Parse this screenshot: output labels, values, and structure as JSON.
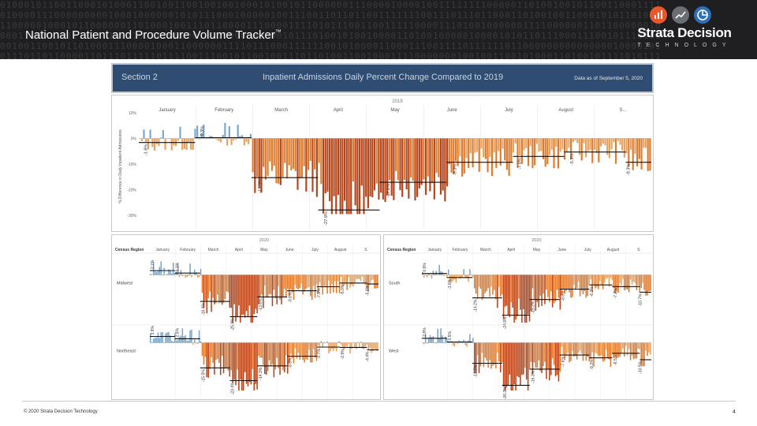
{
  "header": {
    "title": "National Patient and Procedure Volume Tracker",
    "title_mark": "™",
    "logo_name": "Strata Decision",
    "logo_sub": "TECHNOLOGY",
    "logo_badges": [
      {
        "icon": "bar-chart-icon",
        "color": "#e8582c"
      },
      {
        "icon": "line-chart-icon",
        "color": "#6b6f74"
      },
      {
        "icon": "pie-chart-icon",
        "color": "#2f6fb5"
      }
    ]
  },
  "section": {
    "label": "Section 2",
    "title": "Inpatient Admissions Daily Percent Change Compared to 2019",
    "date": "Data as of September 5, 2020"
  },
  "footer": {
    "copyright": "© 2020 Strata Decision Technology",
    "page": "4"
  },
  "colors": {
    "positive": "#7aa6c9",
    "negative_light": "#e8a25f",
    "negative_mid": "#e07b2e",
    "negative_dark": "#b5441a"
  },
  "chart_data": [
    {
      "type": "bar",
      "name": "national",
      "year_label": "2019",
      "ylabel": "% Difference in Daily Inpatient Admissions",
      "ylim": [
        -30,
        10
      ],
      "yticks": [
        "10%",
        "0%",
        "-10%",
        "-20%",
        "-30%"
      ],
      "months": [
        "January",
        "February",
        "March",
        "April",
        "May",
        "June",
        "July",
        "August",
        "S..."
      ],
      "period_avgs": [
        {
          "label": "-1.6%",
          "value": -1.6,
          "from": 0.0,
          "to": 0.11
        },
        {
          "label": "0.3%",
          "value": 0.3,
          "from": 0.11,
          "to": 0.22
        },
        {
          "label": "-15.3%",
          "value": -15.3,
          "from": 0.22,
          "to": 0.35
        },
        {
          "label": "-27.9%",
          "value": -27.9,
          "from": 0.35,
          "to": 0.47
        },
        {
          "label": "-17.1%",
          "value": -17.1,
          "from": 0.47,
          "to": 0.6
        },
        {
          "label": "-9.3%",
          "value": -9.3,
          "from": 0.6,
          "to": 0.73
        },
        {
          "label": "-7.0%",
          "value": -7.0,
          "from": 0.73,
          "to": 0.83
        },
        {
          "label": "-5.3%",
          "value": -5.3,
          "from": 0.83,
          "to": 0.95
        },
        {
          "label": "-9.3%",
          "value": -9.3,
          "from": 0.95,
          "to": 1.0
        }
      ]
    },
    {
      "type": "bar",
      "name": "midwest-northeast",
      "year_label": "2020",
      "header_label": "Census Region",
      "months": [
        "January",
        "February",
        "March",
        "April",
        "May",
        "June",
        "July",
        "August",
        "S"
      ],
      "regions": [
        {
          "name": "Midwest",
          "ylim": [
            -30,
            10
          ],
          "period_avgs": [
            {
              "label": "2.7%",
              "value": 2.7,
              "from": 0.0,
              "to": 0.11
            },
            {
              "label": "1.1%",
              "value": 1.1,
              "from": 0.11,
              "to": 0.22
            },
            {
              "label": "-16.4%",
              "value": -16.4,
              "from": 0.22,
              "to": 0.35
            },
            {
              "label": "-25.8%",
              "value": -25.8,
              "from": 0.35,
              "to": 0.47
            },
            {
              "label": "-13.6%",
              "value": -13.6,
              "from": 0.47,
              "to": 0.6
            },
            {
              "label": "-9.8%",
              "value": -9.8,
              "from": 0.6,
              "to": 0.73
            },
            {
              "label": "-7.3%",
              "value": -7.3,
              "from": 0.73,
              "to": 0.83
            },
            {
              "label": "-5.0%",
              "value": -5.0,
              "from": 0.83,
              "to": 0.95
            },
            {
              "label": "-5.6%",
              "value": -5.6,
              "from": 0.95,
              "to": 1.0
            }
          ]
        },
        {
          "name": "Northeast",
          "ylim": [
            -30,
            10
          ],
          "period_avgs": [
            {
              "label": "3.9%",
              "value": 3.9,
              "from": 0.0,
              "to": 0.11
            },
            {
              "label": "2.5%",
              "value": 2.5,
              "from": 0.11,
              "to": 0.22
            },
            {
              "label": "-15.5%",
              "value": -15.5,
              "from": 0.22,
              "to": 0.35
            },
            {
              "label": "-23.4%",
              "value": -23.4,
              "from": 0.35,
              "to": 0.47
            },
            {
              "label": "-14.3%",
              "value": -14.3,
              "from": 0.47,
              "to": 0.6
            },
            {
              "label": "-8.3%",
              "value": -8.3,
              "from": 0.6,
              "to": 0.73
            },
            {
              "label": "-2.7%",
              "value": -2.7,
              "from": 0.73,
              "to": 0.83
            },
            {
              "label": "-2.9%",
              "value": -2.9,
              "from": 0.83,
              "to": 0.95
            },
            {
              "label": "-4.4%",
              "value": -4.4,
              "from": 0.95,
              "to": 1.0
            }
          ]
        }
      ]
    },
    {
      "type": "bar",
      "name": "south-west",
      "year_label": "2020",
      "header_label": "Census Region",
      "months": [
        "January",
        "February",
        "March",
        "April",
        "May",
        "June",
        "July",
        "August",
        "S"
      ],
      "regions": [
        {
          "name": "South",
          "ylim": [
            -30,
            10
          ],
          "period_avgs": [
            {
              "label": "0.9%",
              "value": 0.9,
              "from": 0.0,
              "to": 0.11
            },
            {
              "label": "-1.6%",
              "value": -1.6,
              "from": 0.11,
              "to": 0.22
            },
            {
              "label": "-14.2%",
              "value": -14.2,
              "from": 0.22,
              "to": 0.35
            },
            {
              "label": "-24.9%",
              "value": -24.9,
              "from": 0.35,
              "to": 0.47
            },
            {
              "label": "-15.2%",
              "value": -15.2,
              "from": 0.47,
              "to": 0.6
            },
            {
              "label": "-8.8%",
              "value": -8.8,
              "from": 0.6,
              "to": 0.73
            },
            {
              "label": "-6.2%",
              "value": -6.2,
              "from": 0.73,
              "to": 0.83
            },
            {
              "label": "-7.2%",
              "value": -7.2,
              "from": 0.83,
              "to": 0.95
            },
            {
              "label": "-10.7%",
              "value": -10.7,
              "from": 0.95,
              "to": 1.0
            }
          ]
        },
        {
          "name": "West",
          "ylim": [
            -30,
            10
          ],
          "period_avgs": [
            {
              "label": "2.8%",
              "value": 2.8,
              "from": 0.0,
              "to": 0.11
            },
            {
              "label": "0.5%",
              "value": 0.5,
              "from": 0.11,
              "to": 0.22
            },
            {
              "label": "-12.7%",
              "value": -12.7,
              "from": 0.22,
              "to": 0.35
            },
            {
              "label": "-26.3%",
              "value": -26.3,
              "from": 0.35,
              "to": 0.47
            },
            {
              "label": "-16.3%",
              "value": -16.3,
              "from": 0.47,
              "to": 0.6
            },
            {
              "label": "-7.6%",
              "value": -7.6,
              "from": 0.6,
              "to": 0.73
            },
            {
              "label": "-9.3%",
              "value": -9.3,
              "from": 0.73,
              "to": 0.83
            },
            {
              "label": "-6.5%",
              "value": -6.5,
              "from": 0.83,
              "to": 0.95
            },
            {
              "label": "-10.5%",
              "value": -10.5,
              "from": 0.95,
              "to": 1.0
            }
          ]
        }
      ]
    }
  ]
}
